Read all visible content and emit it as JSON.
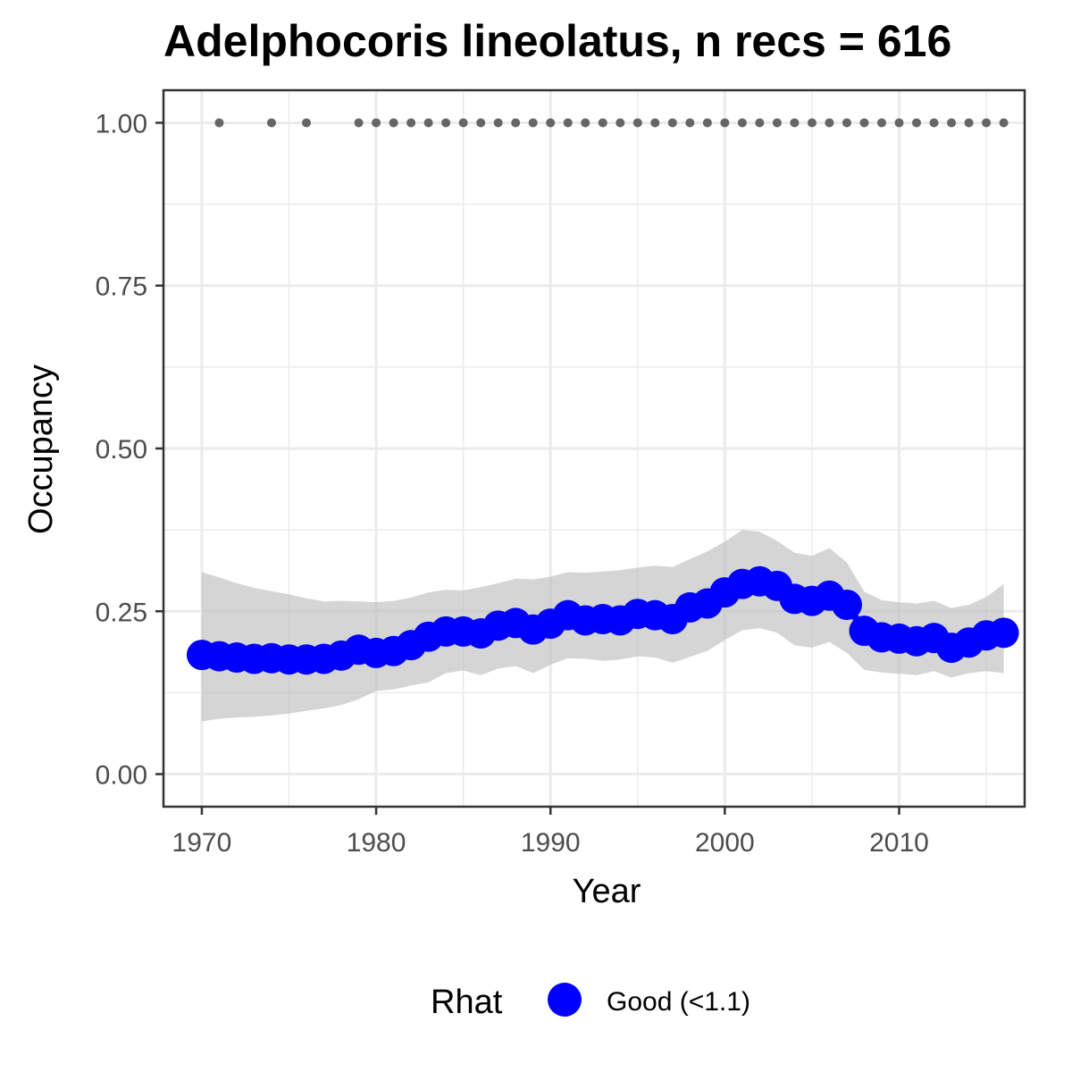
{
  "chart_data": {
    "type": "line",
    "title": "Adelphocoris lineolatus, n recs = 616",
    "xlabel": "Year",
    "ylabel": "Occupancy",
    "xlim": [
      1967.8,
      2017.2
    ],
    "ylim": [
      -0.05,
      1.05
    ],
    "x_ticks": [
      1970,
      1980,
      1990,
      2000,
      2010
    ],
    "x_tick_labels": [
      "1970",
      "1980",
      "1990",
      "2000",
      "2010"
    ],
    "y_ticks": [
      0,
      0.25,
      0.5,
      0.75,
      1.0
    ],
    "y_tick_labels": [
      "0.00",
      "0.25",
      "0.50",
      "0.75",
      "1.00"
    ],
    "grid": true,
    "legend_position": "bottom",
    "colors": {
      "mean": "#0000ff",
      "ribbon": "#bebebe",
      "records": "#666666",
      "grid": "#ebebeb",
      "panel_border": "#333333"
    },
    "series": [
      {
        "name": "Good (<1.1)",
        "x": [
          1970,
          1971,
          1972,
          1973,
          1974,
          1975,
          1976,
          1977,
          1978,
          1979,
          1980,
          1981,
          1982,
          1983,
          1984,
          1985,
          1986,
          1987,
          1988,
          1989,
          1990,
          1991,
          1992,
          1993,
          1994,
          1995,
          1996,
          1997,
          1998,
          1999,
          2000,
          2001,
          2002,
          2003,
          2004,
          2005,
          2006,
          2007,
          2008,
          2009,
          2010,
          2011,
          2012,
          2013,
          2014,
          2015,
          2016
        ],
        "y": [
          0.183,
          0.181,
          0.179,
          0.177,
          0.178,
          0.176,
          0.176,
          0.177,
          0.182,
          0.191,
          0.186,
          0.189,
          0.198,
          0.211,
          0.219,
          0.219,
          0.216,
          0.228,
          0.232,
          0.222,
          0.231,
          0.244,
          0.236,
          0.238,
          0.236,
          0.246,
          0.244,
          0.238,
          0.256,
          0.262,
          0.279,
          0.292,
          0.296,
          0.289,
          0.269,
          0.266,
          0.274,
          0.26,
          0.22,
          0.21,
          0.208,
          0.204,
          0.209,
          0.194,
          0.202,
          0.213,
          0.217
        ],
        "lower": [
          0.081,
          0.085,
          0.087,
          0.088,
          0.09,
          0.093,
          0.097,
          0.101,
          0.106,
          0.115,
          0.128,
          0.13,
          0.136,
          0.141,
          0.155,
          0.159,
          0.152,
          0.162,
          0.166,
          0.155,
          0.168,
          0.178,
          0.177,
          0.174,
          0.176,
          0.181,
          0.179,
          0.171,
          0.18,
          0.189,
          0.206,
          0.221,
          0.224,
          0.217,
          0.198,
          0.194,
          0.203,
          0.186,
          0.16,
          0.156,
          0.154,
          0.152,
          0.158,
          0.148,
          0.155,
          0.158,
          0.155
        ],
        "upper": [
          0.31,
          0.302,
          0.293,
          0.286,
          0.281,
          0.276,
          0.27,
          0.265,
          0.266,
          0.265,
          0.264,
          0.266,
          0.271,
          0.279,
          0.283,
          0.282,
          0.287,
          0.293,
          0.3,
          0.299,
          0.303,
          0.31,
          0.309,
          0.311,
          0.313,
          0.317,
          0.32,
          0.318,
          0.33,
          0.342,
          0.357,
          0.375,
          0.372,
          0.358,
          0.34,
          0.335,
          0.347,
          0.325,
          0.28,
          0.267,
          0.264,
          0.262,
          0.266,
          0.255,
          0.26,
          0.272,
          0.292
        ]
      }
    ],
    "records": {
      "x": [
        1971,
        1974,
        1976,
        1979,
        1980,
        1981,
        1982,
        1983,
        1984,
        1985,
        1986,
        1987,
        1988,
        1989,
        1990,
        1991,
        1992,
        1993,
        1994,
        1995,
        1996,
        1997,
        1998,
        1999,
        2000,
        2001,
        2002,
        2003,
        2004,
        2005,
        2006,
        2007,
        2008,
        2009,
        2010,
        2011,
        2012,
        2013,
        2014,
        2015,
        2016
      ],
      "y": 1.0
    },
    "legend": {
      "title": "Rhat",
      "label": "Good (<1.1)"
    }
  }
}
